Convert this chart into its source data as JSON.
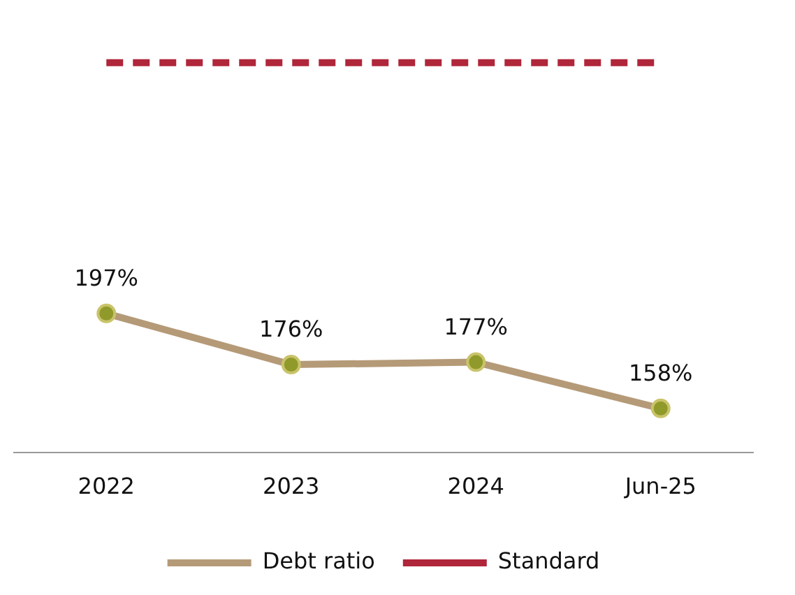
{
  "chart_data": {
    "type": "line",
    "categories": [
      "2022",
      "2023",
      "2024",
      "Jun-25"
    ],
    "series": [
      {
        "name": "Debt ratio",
        "color": "#b59a78",
        "values": [
          197,
          176,
          177,
          158
        ],
        "value_labels": [
          "197%",
          "176%",
          "177%",
          "158%"
        ],
        "marker": "circle"
      },
      {
        "name": "Standard",
        "color": "#b0263a",
        "values": [
          300,
          300,
          300,
          300
        ],
        "line_style": "dashed",
        "marker": "none"
      }
    ],
    "tick_labels": "x",
    "grid": false,
    "legend": "bottom"
  }
}
